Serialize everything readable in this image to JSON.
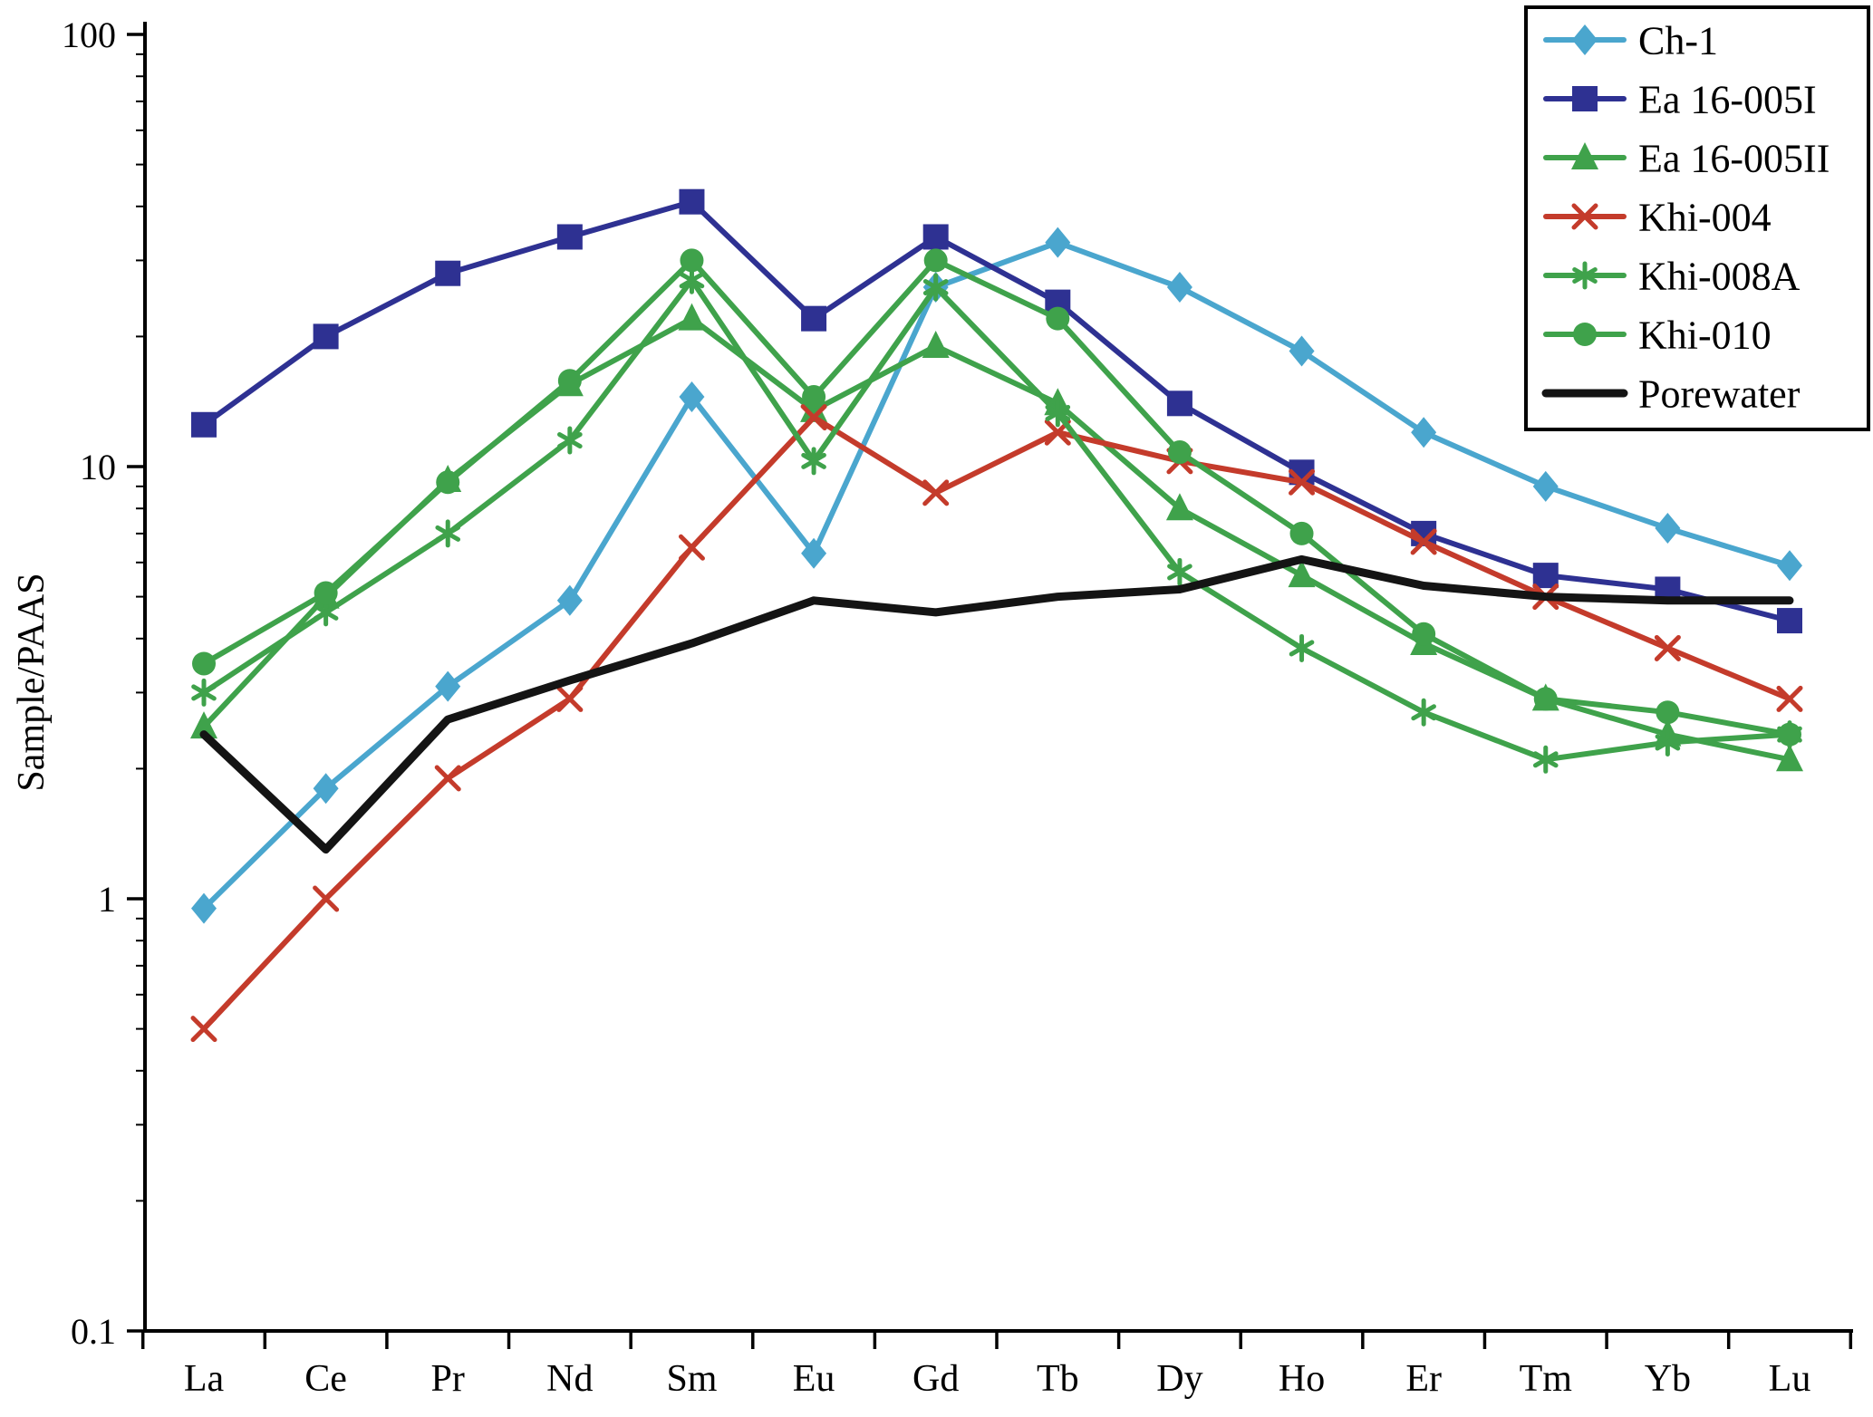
{
  "chart_data": {
    "type": "line",
    "title": "",
    "xlabel": "",
    "ylabel": "Sample/PAAS",
    "y_scale": "log",
    "ylim": [
      0.1,
      100
    ],
    "y_ticks": [
      100,
      10,
      1,
      0.1
    ],
    "y_tick_labels": [
      "100",
      "10",
      "1",
      "0.1"
    ],
    "grid": false,
    "legend_position": "top-right",
    "categories": [
      "La",
      "Ce",
      "Pr",
      "Nd",
      "Sm",
      "Eu",
      "Gd",
      "Tb",
      "Dy",
      "Ho",
      "Er",
      "Tm",
      "Yb",
      "Lu"
    ],
    "series": [
      {
        "name": "Ch-1",
        "color": "#4aa6ce",
        "marker": "diamond",
        "line_width": 6,
        "values": [
          0.95,
          1.8,
          3.1,
          4.9,
          14.5,
          6.3,
          26,
          33,
          26,
          18.5,
          12,
          9.0,
          7.2,
          5.9
        ]
      },
      {
        "name": "Ea 16-005I",
        "color": "#2e3192",
        "marker": "square",
        "line_width": 6,
        "values": [
          12.5,
          20,
          28,
          34,
          41,
          22,
          34,
          24,
          14,
          9.7,
          7.0,
          5.6,
          5.2,
          4.4
        ]
      },
      {
        "name": "Ea 16-005II",
        "color": "#3fa24b",
        "marker": "triangle",
        "line_width": 6,
        "values": [
          2.5,
          5.0,
          9.3,
          15.5,
          22,
          13.5,
          19,
          14,
          8.0,
          5.6,
          3.9,
          2.9,
          2.4,
          2.1
        ]
      },
      {
        "name": "Khi-004",
        "color": "#c43b2b",
        "marker": "x",
        "line_width": 6,
        "values": [
          0.5,
          1.0,
          1.9,
          2.9,
          6.5,
          13,
          8.7,
          12,
          10.3,
          9.2,
          6.7,
          5.0,
          3.8,
          2.9
        ]
      },
      {
        "name": "Khi-008A",
        "color": "#3fa24b",
        "marker": "asterisk",
        "line_width": 6,
        "values": [
          3.0,
          4.6,
          7.0,
          11.5,
          27,
          10.3,
          26,
          13.3,
          5.7,
          3.8,
          2.7,
          2.1,
          2.3,
          2.4
        ]
      },
      {
        "name": "Khi-010",
        "color": "#3fa24b",
        "marker": "circle",
        "line_width": 6,
        "values": [
          3.5,
          5.1,
          9.2,
          15.8,
          30,
          14.5,
          30,
          22,
          10.8,
          7.0,
          4.1,
          2.9,
          2.7,
          2.4
        ]
      },
      {
        "name": "Porewater",
        "color": "#141414",
        "marker": "none",
        "line_width": 9,
        "values": [
          2.4,
          1.3,
          2.6,
          3.2,
          3.9,
          4.9,
          4.6,
          5.0,
          5.2,
          6.1,
          5.3,
          5.0,
          4.9,
          4.9
        ]
      }
    ]
  }
}
